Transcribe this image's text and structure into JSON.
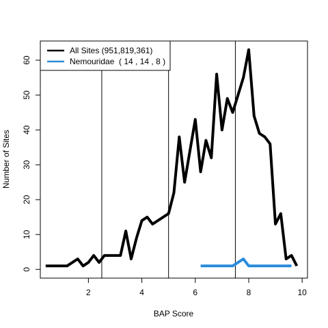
{
  "chart_data": {
    "type": "line",
    "xlabel": "BAP Score",
    "ylabel": "Number of Sites",
    "xlim": [
      0.2,
      10.2
    ],
    "ylim": [
      -2.5,
      65.5
    ],
    "xticks": [
      2,
      4,
      6,
      8,
      10
    ],
    "yticks": [
      0,
      10,
      20,
      30,
      40,
      50,
      60
    ],
    "xtick_labels": [
      "2",
      "4",
      "6",
      "8",
      "10"
    ],
    "ytick_labels": [
      "0",
      "10",
      "20",
      "30",
      "40",
      "50",
      "60"
    ],
    "vlines": [
      2.5,
      5.0,
      7.5
    ],
    "grid": false,
    "legend_position": "top-left",
    "series": [
      {
        "name": "All Sites (951,819,361)",
        "color": "#000000",
        "x": [
          0.4,
          0.6,
          0.8,
          1.0,
          1.2,
          1.4,
          1.6,
          1.8,
          2.0,
          2.2,
          2.4,
          2.6,
          2.8,
          3.0,
          3.2,
          3.4,
          3.6,
          3.8,
          4.0,
          4.2,
          4.4,
          4.6,
          4.8,
          5.0,
          5.2,
          5.4,
          5.6,
          5.8,
          6.0,
          6.2,
          6.4,
          6.6,
          6.8,
          7.0,
          7.2,
          7.4,
          7.6,
          7.8,
          8.0,
          8.2,
          8.4,
          8.6,
          8.8,
          9.0,
          9.2,
          9.4,
          9.6,
          9.8
        ],
        "values": [
          1,
          1,
          1,
          1,
          1,
          2,
          3,
          1,
          2,
          4,
          2,
          4,
          4,
          4,
          4,
          11,
          3,
          9,
          14,
          15,
          13,
          14,
          15,
          16,
          22,
          38,
          25,
          34,
          43,
          28,
          37,
          32,
          56,
          40,
          49,
          45,
          50,
          55,
          63,
          44,
          39,
          38,
          36,
          13,
          16,
          3,
          4,
          1
        ]
      },
      {
        "name": "Nemouridae  ( 14 , 14 , 8 )",
        "color": "#2b8cdc",
        "x": [
          6.2,
          6.4,
          6.6,
          6.8,
          7.0,
          7.2,
          7.4,
          7.6,
          7.8,
          8.0,
          8.2,
          8.4,
          8.6,
          8.8,
          9.0,
          9.2,
          9.4,
          9.6
        ],
        "values": [
          1,
          1,
          1,
          1,
          1,
          1,
          1,
          2,
          3,
          1,
          1,
          1,
          1,
          1,
          1,
          1,
          1,
          1
        ]
      }
    ]
  }
}
